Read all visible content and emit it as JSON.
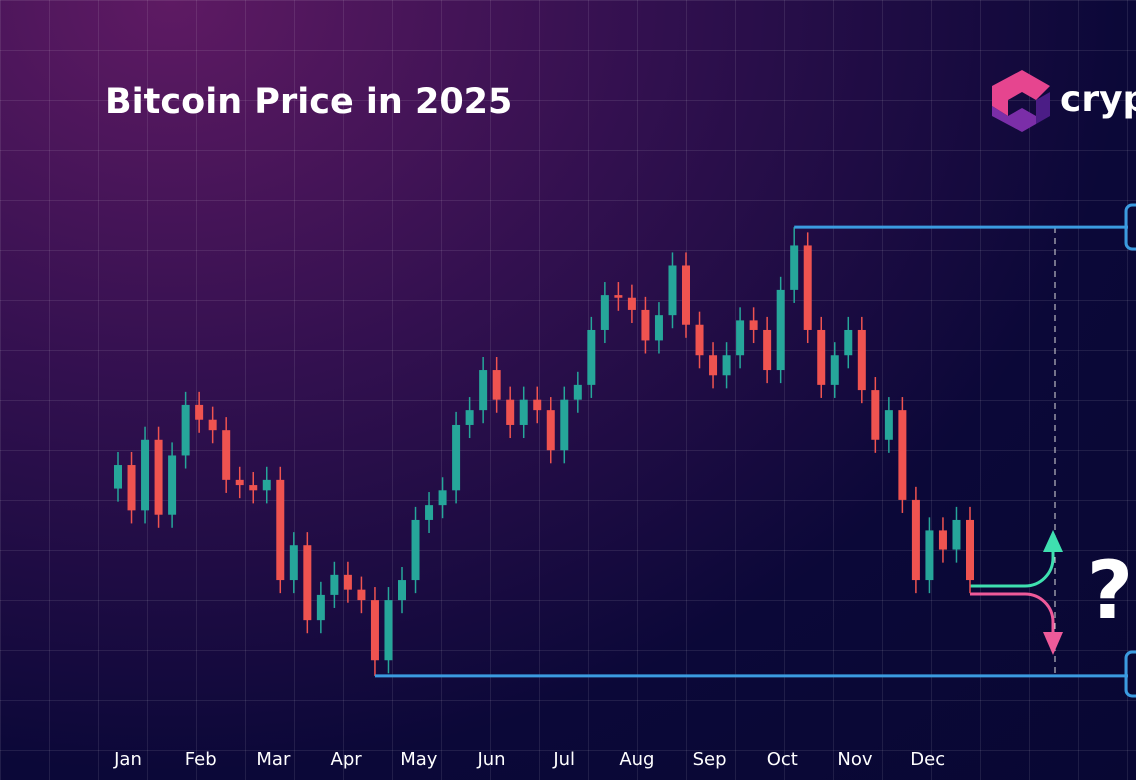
{
  "chart_data": {
    "type": "candlestick",
    "title": "Bitcoin Price in 2025",
    "categories": [
      "Jan",
      "Feb",
      "Mar",
      "Apr",
      "May",
      "Jun",
      "Jul",
      "Aug",
      "Sep",
      "Oct",
      "Nov",
      "Dec"
    ],
    "open": [
      96000,
      98700,
      93500,
      101600,
      93000,
      99800,
      105600,
      103900,
      102700,
      97000,
      96400,
      95800,
      97000,
      85500,
      89500,
      80900,
      83800,
      86100,
      84400,
      83200,
      76300,
      83200,
      85500,
      92400,
      94100,
      95800,
      103300,
      105000,
      109600,
      106200,
      103300,
      106200,
      105000,
      100400,
      106200,
      107900,
      114200,
      118200,
      117900,
      116500,
      113000,
      115900,
      121600,
      114800,
      111300,
      109000,
      111300,
      115300,
      114200,
      109600,
      118800,
      123900,
      114200,
      107900,
      111300,
      114200,
      107300,
      101600,
      105000,
      94700,
      85500,
      91200,
      89000,
      92400
    ],
    "high": [
      100200,
      100200,
      103100,
      103100,
      101300,
      107100,
      107100,
      105400,
      104200,
      98500,
      97900,
      98500,
      98500,
      91000,
      91000,
      85300,
      87600,
      87600,
      85900,
      84700,
      84700,
      87000,
      93900,
      95600,
      97300,
      104800,
      106500,
      111100,
      111100,
      107700,
      107700,
      107700,
      106500,
      107700,
      109400,
      115700,
      119700,
      119700,
      119400,
      118000,
      117400,
      123100,
      123100,
      116300,
      112800,
      112800,
      116800,
      116800,
      115700,
      120300,
      126000,
      125400,
      115700,
      112800,
      115700,
      115700,
      108800,
      106500,
      106500,
      96200,
      92700,
      92700,
      93900,
      93900
    ],
    "low": [
      94500,
      92000,
      92000,
      91500,
      91500,
      98300,
      102400,
      101200,
      95500,
      94900,
      94300,
      94300,
      84000,
      84000,
      79400,
      79400,
      82300,
      82900,
      81700,
      74500,
      74800,
      81700,
      84000,
      90900,
      92600,
      94300,
      101800,
      103500,
      104700,
      101800,
      101800,
      103500,
      98900,
      98900,
      104700,
      106400,
      112700,
      116400,
      115000,
      111500,
      111500,
      114400,
      113300,
      109800,
      107500,
      107500,
      109800,
      112700,
      108100,
      108100,
      117300,
      112700,
      106400,
      106400,
      109800,
      105800,
      100100,
      100100,
      93200,
      84000,
      84000,
      87500,
      87500,
      84000
    ],
    "close": [
      98700,
      93500,
      101600,
      93000,
      99800,
      105600,
      103900,
      102700,
      97000,
      96400,
      95800,
      97000,
      85500,
      89500,
      80900,
      83800,
      86100,
      84400,
      83200,
      76300,
      83200,
      85500,
      92400,
      94100,
      95800,
      103300,
      105000,
      109600,
      106200,
      103300,
      106200,
      105000,
      100400,
      106200,
      107900,
      114200,
      118200,
      117900,
      116500,
      113000,
      115900,
      121600,
      114800,
      111300,
      109000,
      111300,
      115300,
      114200,
      109600,
      118800,
      123900,
      114200,
      107900,
      111300,
      114200,
      107300,
      101600,
      105000,
      94700,
      85500,
      91200,
      89000,
      92400,
      85500
    ],
    "up_color": "#26a69a",
    "down_color": "#ef5350",
    "ylim": [
      66000,
      136000
    ],
    "levels": [
      126000,
      74500
    ],
    "level_color": "#3b9be0",
    "annotation": "?"
  },
  "logo": "crypt"
}
